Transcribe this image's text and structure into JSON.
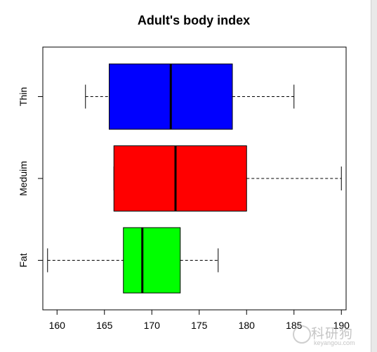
{
  "chart_data": {
    "type": "boxplot",
    "orientation": "horizontal",
    "title": "Adult's body index",
    "xlabel": "",
    "ylabel": "",
    "xlim": [
      158.5,
      190.5
    ],
    "xticks": [
      160,
      165,
      170,
      175,
      180,
      185,
      190
    ],
    "grid": false,
    "categories": [
      "Fat",
      "Meduim",
      "Thin"
    ],
    "boxes": [
      {
        "label": "Fat",
        "color": "#00ff00",
        "min": 159,
        "q1": 167.0,
        "median": 169.0,
        "q3": 173.0,
        "max": 177
      },
      {
        "label": "Meduim",
        "color": "#ff0000",
        "min": 166,
        "q1": 166.0,
        "median": 172.5,
        "q3": 180.0,
        "max": 190
      },
      {
        "label": "Thin",
        "color": "#0000ff",
        "min": 163,
        "q1": 165.5,
        "median": 172.0,
        "q3": 178.5,
        "max": 185
      }
    ]
  },
  "watermark": {
    "main": "科研狗",
    "sub": "keyangou.com"
  }
}
